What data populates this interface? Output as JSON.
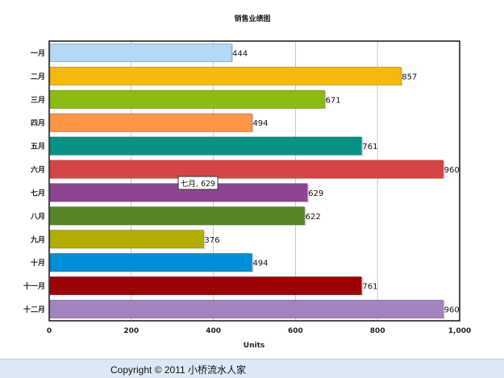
{
  "chart_data": {
    "type": "bar",
    "orientation": "horizontal",
    "title": "销售业绩图",
    "xlabel": "Units",
    "ylabel": "",
    "xlim": [
      0,
      1000
    ],
    "xticks": [
      "0",
      "200",
      "400",
      "600",
      "800",
      "1,000"
    ],
    "grid": true,
    "categories": [
      "一月",
      "二月",
      "三月",
      "四月",
      "五月",
      "六月",
      "七月",
      "八月",
      "九月",
      "十月",
      "十一月",
      "十二月"
    ],
    "values": [
      444,
      857,
      671,
      494,
      761,
      960,
      629,
      622,
      376,
      494,
      761,
      960
    ],
    "colors": [
      "#b3d9f7",
      "#f5b80c",
      "#8bbb10",
      "#fe9445",
      "#079186",
      "#d64545",
      "#8e4590",
      "#598526",
      "#b2ae00",
      "#008ed6",
      "#9c0106",
      "#a283bf"
    ],
    "tooltip": {
      "text": "七月, 629"
    }
  },
  "footer": {
    "copyright": "Copyright © 2011 小桥流水人家"
  }
}
